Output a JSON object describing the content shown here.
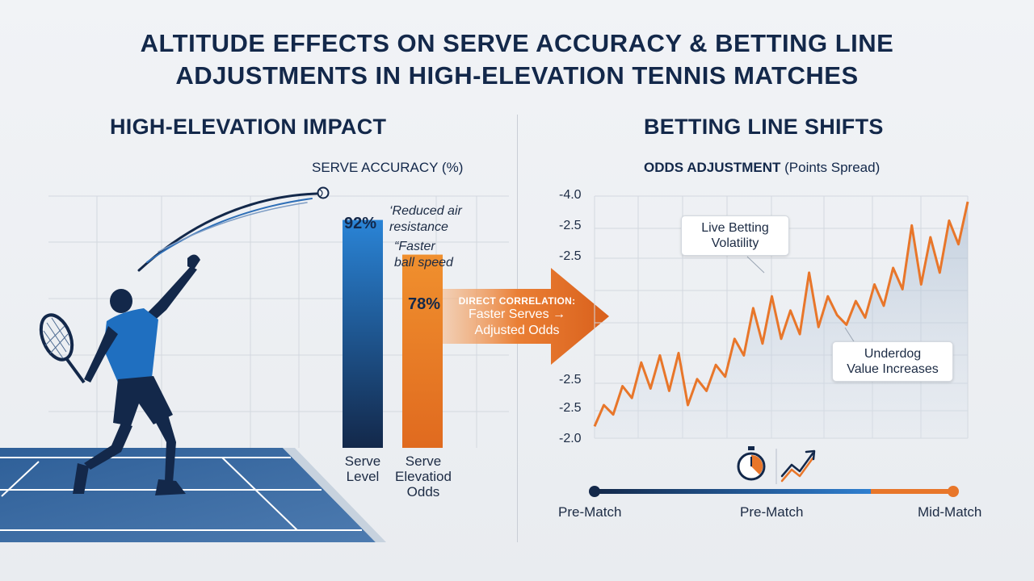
{
  "title_line1": "ALTITUDE EFFECTS ON SERVE ACCURACY & BETTING LINE",
  "title_line2": "ADJUSTMENTS IN HIGH-ELEVATION TENNIS MATCHES",
  "left_section_title": "HIGH-ELEVATION IMPACT",
  "right_section_title": "BETTING LINE SHIFTS",
  "annotations": {
    "reduced_air": "‘Reduced air\nresistance",
    "faster_ball": "“Faster\nball speed"
  },
  "correlation": {
    "line1": "DIRECT CORRELATION:",
    "line2": "Faster Serves →",
    "line3": "Adjusted Odds"
  },
  "callouts": {
    "volatility": "Live Betting\nVolatility",
    "underdog": "Underdog\nValue Increases"
  },
  "timeline": {
    "labels": [
      "Pre-Match",
      "Pre-Match",
      "Mid-Match"
    ],
    "colors": [
      "#13284a",
      "#2f7fd0",
      "#e8762a"
    ]
  },
  "colors": {
    "blue_bar": "#1f6fc0",
    "orange": "#e8762a",
    "navy": "#13284a"
  },
  "chart_data": [
    {
      "type": "bar",
      "title": "SERVE ACCURACY (%)",
      "categories": [
        "Serve\nLevel",
        "Serve\nElevatiod\nOdds"
      ],
      "values": [
        92,
        78
      ],
      "data_labels": [
        "92%",
        "78%"
      ],
      "ylim": [
        0,
        100
      ],
      "grid": true
    },
    {
      "type": "area",
      "title_main": "ODDS ADJUSTMENT",
      "title_sub": "(Points Spread)",
      "y_tick_labels": [
        "-4.0",
        "-2.5",
        "-2.5",
        "-2.5",
        "-2.5",
        "-2.0"
      ],
      "ylim": [
        0,
        100
      ],
      "x": [
        0,
        1,
        2,
        3,
        4,
        5,
        6,
        7,
        8,
        9,
        10,
        11,
        12,
        13,
        14,
        15,
        16,
        17,
        18,
        19,
        20,
        21,
        22,
        23,
        24,
        25,
        26,
        27,
        28,
        29,
        30,
        31,
        32,
        33,
        34,
        35,
        36,
        37,
        38,
        39,
        40
      ],
      "series": [
        {
          "values": [
            5,
            14,
            10,
            22,
            17,
            32,
            21,
            35,
            20,
            36,
            14,
            25,
            20,
            31,
            26,
            42,
            35,
            55,
            40,
            60,
            42,
            54,
            44,
            70,
            47,
            60,
            52,
            48,
            58,
            51,
            65,
            56,
            72,
            63,
            90,
            65,
            85,
            70,
            92,
            82,
            100
          ]
        }
      ],
      "grid": true
    }
  ]
}
